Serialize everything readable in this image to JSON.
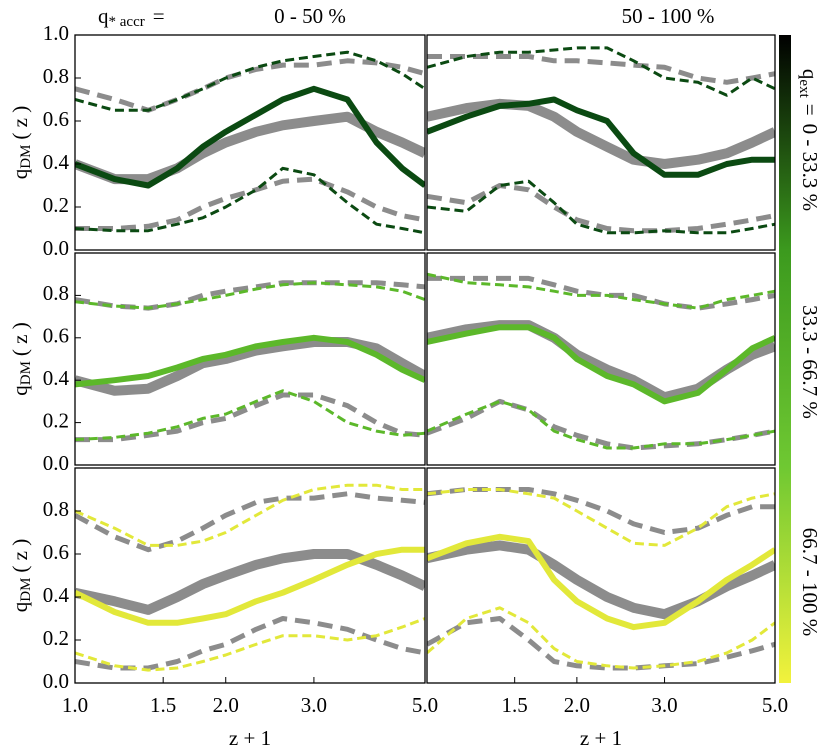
{
  "header": {
    "label_symbol": "q",
    "label_subscript": "* accr",
    "label_equals": "=",
    "columns": [
      "0 - 50 %",
      "50 - 100 %"
    ]
  },
  "colorbar": {
    "colors": [
      "#000000",
      "#3c9a1e",
      "#6fc832",
      "#f2f23c"
    ],
    "label_symbol": "q",
    "label_subscript": "ext",
    "label_equals": "=",
    "rows": [
      "0 - 33.3 %",
      "33.3 - 66.7 %",
      "66.7 - 100 %"
    ]
  },
  "chart_data": [
    {
      "type": "line",
      "xlog": true,
      "xlim": [
        1,
        5
      ],
      "ylim": [
        0,
        1
      ],
      "yticks": [
        {
          "value": 0,
          "label": "0.0"
        },
        {
          "value": 0.2,
          "label": "0.2"
        },
        {
          "value": 0.4,
          "label": "0.4"
        },
        {
          "value": 0.6,
          "label": "0.6"
        },
        {
          "value": 0.8,
          "label": "0.8"
        },
        {
          "value": 1,
          "label": "1.0"
        }
      ],
      "ylabel": {
        "symbol": "q",
        "subscript": "DM",
        "rest": "( z )"
      },
      "x": [
        1.0,
        1.2,
        1.4,
        1.6,
        1.8,
        2.0,
        2.3,
        2.6,
        3.0,
        3.5,
        4.0,
        4.5,
        5.0
      ],
      "series": [
        {
          "color": "#8c8c8c",
          "linestyle": "solid",
          "linewidth": 10,
          "values": [
            0.4,
            0.33,
            0.33,
            0.38,
            0.45,
            0.5,
            0.55,
            0.58,
            0.6,
            0.62,
            0.55,
            0.5,
            0.45
          ]
        },
        {
          "color": "#8c8c8c",
          "linestyle": "dashed",
          "linewidth": 5,
          "values": [
            0.1,
            0.1,
            0.11,
            0.14,
            0.2,
            0.24,
            0.28,
            0.32,
            0.33,
            0.27,
            0.2,
            0.16,
            0.14
          ]
        },
        {
          "color": "#8c8c8c",
          "linestyle": "dashed",
          "linewidth": 5,
          "values": [
            0.75,
            0.7,
            0.65,
            0.7,
            0.75,
            0.8,
            0.84,
            0.86,
            0.86,
            0.88,
            0.87,
            0.85,
            0.82
          ]
        },
        {
          "color": "#0b4a12",
          "linestyle": "solid",
          "linewidth": 6,
          "values": [
            0.4,
            0.33,
            0.3,
            0.38,
            0.48,
            0.55,
            0.63,
            0.7,
            0.75,
            0.7,
            0.5,
            0.38,
            0.3
          ]
        },
        {
          "color": "#0b4a12",
          "linestyle": "dashed",
          "linewidth": 3,
          "values": [
            0.1,
            0.09,
            0.09,
            0.12,
            0.15,
            0.2,
            0.28,
            0.38,
            0.35,
            0.22,
            0.12,
            0.1,
            0.08
          ]
        },
        {
          "color": "#0b4a12",
          "linestyle": "dashed",
          "linewidth": 3,
          "values": [
            0.7,
            0.65,
            0.65,
            0.7,
            0.75,
            0.8,
            0.85,
            0.88,
            0.9,
            0.92,
            0.88,
            0.82,
            0.75
          ]
        }
      ]
    },
    {
      "type": "line",
      "xlog": true,
      "xlim": [
        1,
        5
      ],
      "ylim": [
        0,
        1
      ],
      "x": [
        1.0,
        1.2,
        1.4,
        1.6,
        1.8,
        2.0,
        2.3,
        2.6,
        3.0,
        3.5,
        4.0,
        4.5,
        5.0
      ],
      "series": [
        {
          "color": "#8c8c8c",
          "linestyle": "solid",
          "linewidth": 10,
          "values": [
            0.62,
            0.66,
            0.68,
            0.67,
            0.62,
            0.55,
            0.48,
            0.42,
            0.4,
            0.42,
            0.45,
            0.5,
            0.55
          ]
        },
        {
          "color": "#8c8c8c",
          "linestyle": "dashed",
          "linewidth": 5,
          "values": [
            0.25,
            0.22,
            0.3,
            0.28,
            0.2,
            0.14,
            0.1,
            0.09,
            0.09,
            0.1,
            0.12,
            0.14,
            0.16
          ]
        },
        {
          "color": "#8c8c8c",
          "linestyle": "dashed",
          "linewidth": 5,
          "values": [
            0.9,
            0.9,
            0.9,
            0.9,
            0.88,
            0.88,
            0.87,
            0.86,
            0.85,
            0.8,
            0.78,
            0.8,
            0.82
          ]
        },
        {
          "color": "#0b4a12",
          "linestyle": "solid",
          "linewidth": 6,
          "values": [
            0.55,
            0.62,
            0.67,
            0.68,
            0.7,
            0.65,
            0.6,
            0.45,
            0.35,
            0.35,
            0.4,
            0.42,
            0.42
          ]
        },
        {
          "color": "#0b4a12",
          "linestyle": "dashed",
          "linewidth": 3,
          "values": [
            0.2,
            0.18,
            0.3,
            0.32,
            0.22,
            0.12,
            0.08,
            0.08,
            0.09,
            0.08,
            0.08,
            0.1,
            0.12
          ]
        },
        {
          "color": "#0b4a12",
          "linestyle": "dashed",
          "linewidth": 3,
          "values": [
            0.85,
            0.9,
            0.92,
            0.92,
            0.93,
            0.94,
            0.94,
            0.88,
            0.8,
            0.78,
            0.72,
            0.8,
            0.75
          ]
        }
      ]
    },
    {
      "type": "line",
      "xlog": true,
      "xlim": [
        1,
        5
      ],
      "ylim": [
        0,
        1
      ],
      "yticks": [
        {
          "value": 0,
          "label": "0.0"
        },
        {
          "value": 0.2,
          "label": "0.2"
        },
        {
          "value": 0.4,
          "label": "0.4"
        },
        {
          "value": 0.6,
          "label": "0.6"
        },
        {
          "value": 0.8,
          "label": "0.8"
        }
      ],
      "ylabel": {
        "symbol": "q",
        "subscript": "DM",
        "rest": "( z )"
      },
      "x": [
        1.0,
        1.2,
        1.4,
        1.6,
        1.8,
        2.0,
        2.3,
        2.6,
        3.0,
        3.5,
        4.0,
        4.5,
        5.0
      ],
      "series": [
        {
          "color": "#8c8c8c",
          "linestyle": "solid",
          "linewidth": 10,
          "values": [
            0.4,
            0.35,
            0.36,
            0.42,
            0.48,
            0.5,
            0.54,
            0.56,
            0.58,
            0.58,
            0.55,
            0.48,
            0.42
          ]
        },
        {
          "color": "#8c8c8c",
          "linestyle": "dashed",
          "linewidth": 5,
          "values": [
            0.12,
            0.12,
            0.14,
            0.16,
            0.2,
            0.22,
            0.28,
            0.33,
            0.33,
            0.28,
            0.2,
            0.15,
            0.14
          ]
        },
        {
          "color": "#8c8c8c",
          "linestyle": "dashed",
          "linewidth": 5,
          "values": [
            0.78,
            0.75,
            0.74,
            0.76,
            0.8,
            0.82,
            0.84,
            0.86,
            0.86,
            0.86,
            0.86,
            0.85,
            0.84
          ]
        },
        {
          "color": "#5cb82a",
          "linestyle": "solid",
          "linewidth": 6,
          "values": [
            0.38,
            0.4,
            0.42,
            0.46,
            0.5,
            0.52,
            0.56,
            0.58,
            0.6,
            0.58,
            0.52,
            0.45,
            0.4
          ]
        },
        {
          "color": "#5cb82a",
          "linestyle": "dashed",
          "linewidth": 3,
          "values": [
            0.12,
            0.13,
            0.15,
            0.18,
            0.22,
            0.24,
            0.3,
            0.35,
            0.3,
            0.2,
            0.16,
            0.14,
            0.15
          ]
        },
        {
          "color": "#5cb82a",
          "linestyle": "dashed",
          "linewidth": 3,
          "values": [
            0.77,
            0.75,
            0.74,
            0.76,
            0.78,
            0.8,
            0.83,
            0.85,
            0.86,
            0.85,
            0.84,
            0.82,
            0.78
          ]
        }
      ]
    },
    {
      "type": "line",
      "xlog": true,
      "xlim": [
        1,
        5
      ],
      "ylim": [
        0,
        1
      ],
      "x": [
        1.0,
        1.2,
        1.4,
        1.6,
        1.8,
        2.0,
        2.3,
        2.6,
        3.0,
        3.5,
        4.0,
        4.5,
        5.0
      ],
      "series": [
        {
          "color": "#8c8c8c",
          "linestyle": "solid",
          "linewidth": 10,
          "values": [
            0.6,
            0.64,
            0.66,
            0.66,
            0.6,
            0.52,
            0.45,
            0.4,
            0.32,
            0.36,
            0.45,
            0.52,
            0.56
          ]
        },
        {
          "color": "#8c8c8c",
          "linestyle": "dashed",
          "linewidth": 5,
          "values": [
            0.15,
            0.22,
            0.3,
            0.26,
            0.18,
            0.14,
            0.1,
            0.08,
            0.09,
            0.1,
            0.12,
            0.14,
            0.16
          ]
        },
        {
          "color": "#8c8c8c",
          "linestyle": "dashed",
          "linewidth": 5,
          "values": [
            0.88,
            0.88,
            0.88,
            0.88,
            0.85,
            0.82,
            0.8,
            0.8,
            0.76,
            0.74,
            0.76,
            0.78,
            0.8
          ]
        },
        {
          "color": "#5cb82a",
          "linestyle": "solid",
          "linewidth": 6,
          "values": [
            0.58,
            0.62,
            0.65,
            0.65,
            0.6,
            0.5,
            0.42,
            0.38,
            0.3,
            0.34,
            0.45,
            0.55,
            0.6
          ]
        },
        {
          "color": "#5cb82a",
          "linestyle": "dashed",
          "linewidth": 3,
          "values": [
            0.16,
            0.24,
            0.3,
            0.26,
            0.16,
            0.12,
            0.08,
            0.08,
            0.1,
            0.1,
            0.12,
            0.14,
            0.16
          ]
        },
        {
          "color": "#5cb82a",
          "linestyle": "dashed",
          "linewidth": 3,
          "values": [
            0.9,
            0.86,
            0.85,
            0.84,
            0.82,
            0.8,
            0.8,
            0.78,
            0.76,
            0.74,
            0.78,
            0.8,
            0.82
          ]
        }
      ]
    },
    {
      "type": "line",
      "xlog": true,
      "xlim": [
        1,
        5
      ],
      "ylim": [
        0,
        1
      ],
      "yticks": [
        {
          "value": 0,
          "label": "0.0"
        },
        {
          "value": 0.2,
          "label": "0.2"
        },
        {
          "value": 0.4,
          "label": "0.4"
        },
        {
          "value": 0.6,
          "label": "0.6"
        },
        {
          "value": 0.8,
          "label": "0.8"
        }
      ],
      "xticks": [
        {
          "value": 1,
          "label": "1.0"
        },
        {
          "value": 1.5,
          "label": "1.5"
        },
        {
          "value": 2,
          "label": "2.0"
        },
        {
          "value": 3,
          "label": "3.0"
        },
        {
          "value": 5,
          "label": "5.0"
        }
      ],
      "ylabel": {
        "symbol": "q",
        "subscript": "DM",
        "rest": "( z )"
      },
      "xlabel": "z + 1",
      "x": [
        1.0,
        1.2,
        1.4,
        1.6,
        1.8,
        2.0,
        2.3,
        2.6,
        3.0,
        3.5,
        4.0,
        4.5,
        5.0
      ],
      "series": [
        {
          "color": "#8c8c8c",
          "linestyle": "solid",
          "linewidth": 10,
          "values": [
            0.42,
            0.38,
            0.34,
            0.4,
            0.46,
            0.5,
            0.55,
            0.58,
            0.6,
            0.6,
            0.55,
            0.5,
            0.45
          ]
        },
        {
          "color": "#8c8c8c",
          "linestyle": "dashed",
          "linewidth": 5,
          "values": [
            0.1,
            0.07,
            0.07,
            0.1,
            0.15,
            0.18,
            0.25,
            0.3,
            0.28,
            0.25,
            0.2,
            0.16,
            0.14
          ]
        },
        {
          "color": "#8c8c8c",
          "linestyle": "dashed",
          "linewidth": 5,
          "values": [
            0.78,
            0.68,
            0.62,
            0.66,
            0.72,
            0.78,
            0.84,
            0.86,
            0.86,
            0.88,
            0.86,
            0.85,
            0.84
          ]
        },
        {
          "color": "#e2e83a",
          "linestyle": "solid",
          "linewidth": 6,
          "values": [
            0.42,
            0.33,
            0.28,
            0.28,
            0.3,
            0.32,
            0.38,
            0.42,
            0.48,
            0.55,
            0.6,
            0.62,
            0.62
          ]
        },
        {
          "color": "#e2e83a",
          "linestyle": "dashed",
          "linewidth": 3,
          "values": [
            0.14,
            0.08,
            0.06,
            0.07,
            0.1,
            0.13,
            0.18,
            0.22,
            0.22,
            0.2,
            0.22,
            0.26,
            0.3
          ]
        },
        {
          "color": "#e2e83a",
          "linestyle": "dashed",
          "linewidth": 3,
          "values": [
            0.8,
            0.72,
            0.64,
            0.64,
            0.66,
            0.7,
            0.78,
            0.85,
            0.9,
            0.92,
            0.92,
            0.9,
            0.9
          ]
        }
      ]
    },
    {
      "type": "line",
      "xlog": true,
      "xlim": [
        1,
        5
      ],
      "ylim": [
        0,
        1
      ],
      "xticks": [
        {
          "value": 1.5,
          "label": "1.5"
        },
        {
          "value": 2,
          "label": "2.0"
        },
        {
          "value": 3,
          "label": "3.0"
        },
        {
          "value": 5,
          "label": "5.0"
        }
      ],
      "xlabel": "z + 1",
      "x": [
        1.0,
        1.2,
        1.4,
        1.6,
        1.8,
        2.0,
        2.3,
        2.6,
        3.0,
        3.5,
        4.0,
        4.5,
        5.0
      ],
      "series": [
        {
          "color": "#8c8c8c",
          "linestyle": "solid",
          "linewidth": 10,
          "values": [
            0.58,
            0.62,
            0.64,
            0.62,
            0.55,
            0.48,
            0.4,
            0.35,
            0.32,
            0.38,
            0.45,
            0.5,
            0.55
          ]
        },
        {
          "color": "#8c8c8c",
          "linestyle": "dashed",
          "linewidth": 5,
          "values": [
            0.18,
            0.28,
            0.3,
            0.2,
            0.1,
            0.08,
            0.07,
            0.07,
            0.08,
            0.09,
            0.12,
            0.15,
            0.18
          ]
        },
        {
          "color": "#8c8c8c",
          "linestyle": "dashed",
          "linewidth": 5,
          "values": [
            0.88,
            0.9,
            0.9,
            0.9,
            0.88,
            0.85,
            0.8,
            0.74,
            0.7,
            0.72,
            0.78,
            0.82,
            0.82
          ]
        },
        {
          "color": "#e2e83a",
          "linestyle": "solid",
          "linewidth": 6,
          "values": [
            0.58,
            0.65,
            0.68,
            0.66,
            0.48,
            0.38,
            0.3,
            0.26,
            0.28,
            0.38,
            0.48,
            0.55,
            0.62
          ]
        },
        {
          "color": "#e2e83a",
          "linestyle": "dashed",
          "linewidth": 3,
          "values": [
            0.14,
            0.3,
            0.35,
            0.28,
            0.16,
            0.1,
            0.08,
            0.07,
            0.08,
            0.1,
            0.14,
            0.2,
            0.28
          ]
        },
        {
          "color": "#e2e83a",
          "linestyle": "dashed",
          "linewidth": 3,
          "values": [
            0.88,
            0.9,
            0.9,
            0.88,
            0.86,
            0.8,
            0.72,
            0.65,
            0.64,
            0.72,
            0.82,
            0.86,
            0.88
          ]
        }
      ]
    }
  ]
}
